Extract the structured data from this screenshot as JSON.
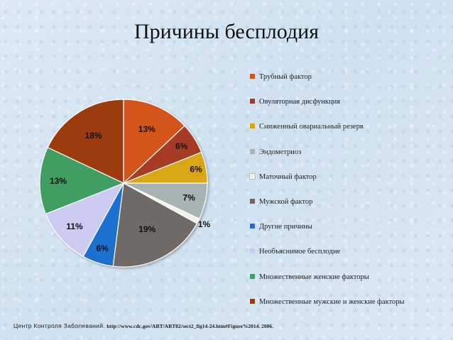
{
  "slide": {
    "title": "Причины бесплодия",
    "footer_source": "Центр Контроля Заболеваний.",
    "footer_url": "http://www.cdc.gov/ART/ART02/sect2_fig14-24.htm#Figure%2014. 2006."
  },
  "chart_data": {
    "type": "pie",
    "title": "",
    "legend_position": "right",
    "series": [
      {
        "name": "Трубный фактор",
        "value": 13,
        "label": "13%",
        "color": "#d4541f"
      },
      {
        "name": "Овуляторная дисфункция",
        "value": 6,
        "label": "6%",
        "color": "#a83a25"
      },
      {
        "name": "Сниженный овариальный резерв",
        "value": 6,
        "label": "6%",
        "color": "#d9a712"
      },
      {
        "name": "Эндометриоз",
        "value": 7,
        "label": "7%",
        "color": "#a8b4b4"
      },
      {
        "name": "Маточный фактор",
        "value": 1,
        "label": "1%",
        "color": "#f3f1e6"
      },
      {
        "name": "Мужской фактор",
        "value": 19,
        "label": "19%",
        "color": "#6f6a66"
      },
      {
        "name": "Другие причины",
        "value": 6,
        "label": "6%",
        "color": "#1f6fd0"
      },
      {
        "name": "Необъяснимое бесплодие",
        "value": 11,
        "label": "11%",
        "color": "#ccccf3"
      },
      {
        "name": "Множественные женские факторы",
        "value": 13,
        "label": "13%",
        "color": "#3f9e64"
      },
      {
        "name": "Множественные мужские и женские факторы",
        "value": 18,
        "label": "18%",
        "color": "#9c3a0e"
      }
    ]
  }
}
